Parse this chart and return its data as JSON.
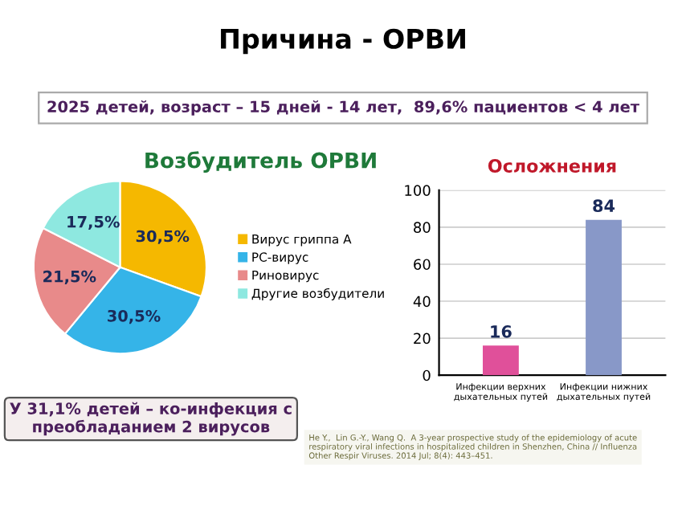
{
  "chart_data": [
    {
      "type": "pie",
      "title": "Возбудитель ОРВИ",
      "categories": [
        "Вирус гриппа А",
        "РС-вирус",
        "Риновирус",
        "Другие возбудители"
      ],
      "values": [
        30.5,
        30.5,
        21.5,
        17.5
      ],
      "value_labels": [
        "30,5%",
        "30,5%",
        "21,5%",
        "17,5%"
      ],
      "colors": [
        "#f5b800",
        "#35b4e8",
        "#e88a8a",
        "#8ee8e0"
      ],
      "legend": "right",
      "annotations": [
        "Причина - ОРВИ",
        "2025 детей, возраст – 15 дней - 14 лет,  89,6% пациентов < 4 лет",
        "У 31,1% детей – ко-инфекция с преобладанием 2 вирусов"
      ]
    },
    {
      "type": "bar",
      "title": "Осложнения",
      "categories": [
        "Инфекции верхних дыхательных путей",
        "Инфекции нижних дыхательных путей"
      ],
      "values": [
        16,
        84
      ],
      "colors": [
        "#e0509a",
        "#8898c8"
      ],
      "ylim": [
        0,
        100
      ],
      "yticks": [
        0,
        20,
        40,
        60,
        80,
        100
      ],
      "grid": "y",
      "data_labels": true,
      "annotations": [
        "He Y.,  Lin G.-Y., Wang Q.  A 3-year prospective study of the epidemiology of acute respiratory viral infections in hospitalized children in Shenzhen, China // Influenza Other Respir Viruses. 2014 Jul; 8(4): 443–451."
      ]
    }
  ]
}
